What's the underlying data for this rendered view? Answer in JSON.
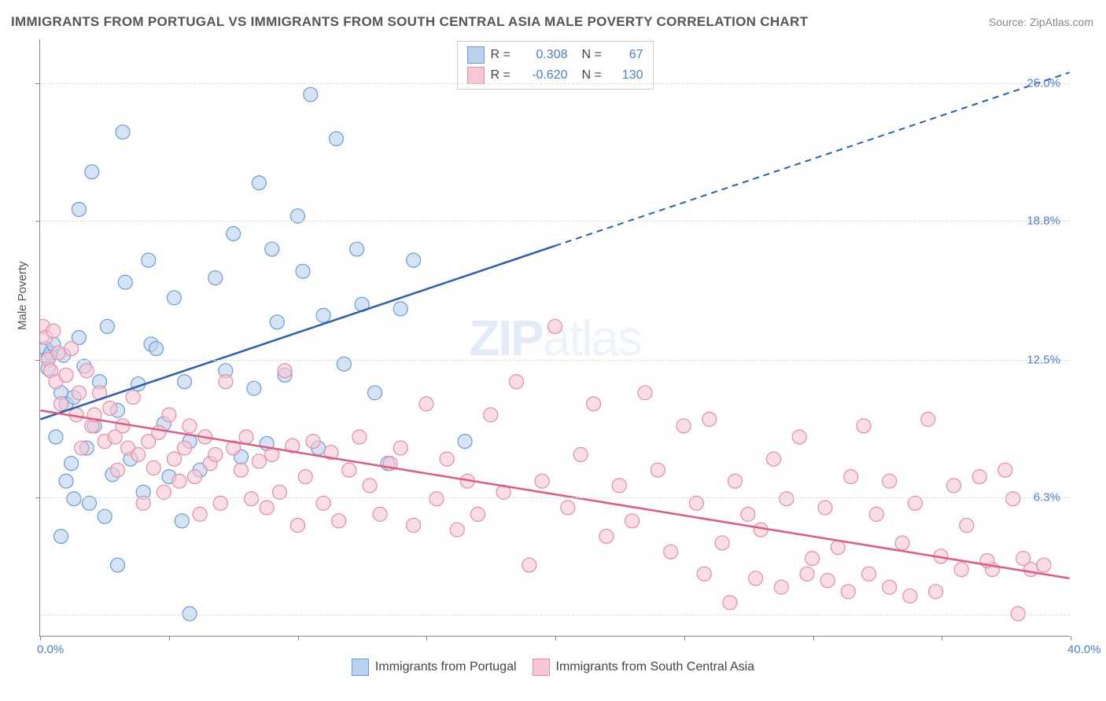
{
  "title": "IMMIGRANTS FROM PORTUGAL VS IMMIGRANTS FROM SOUTH CENTRAL ASIA MALE POVERTY CORRELATION CHART",
  "source": "Source: ZipAtlas.com",
  "ylabel": "Male Poverty",
  "watermark_main": "ZIP",
  "watermark_sub": "atlas",
  "background_color": "#ffffff",
  "grid_color": "#dddddd",
  "axis_color": "#888888",
  "text_color": "#555555",
  "value_color": "#4a7fd8",
  "xlim": [
    0,
    40
  ],
  "ylim": [
    0,
    27
  ],
  "xticks": [
    {
      "pos": 0.0,
      "label": "0.0%"
    },
    {
      "pos": 40.0,
      "label": "40.0%"
    }
  ],
  "xtick_marks": [
    0,
    5,
    10,
    15,
    20,
    25,
    30,
    35,
    40
  ],
  "yticks": [
    {
      "pos": 6.3,
      "label": "6.3%"
    },
    {
      "pos": 12.5,
      "label": "12.5%"
    },
    {
      "pos": 18.8,
      "label": "18.8%"
    },
    {
      "pos": 25.0,
      "label": "25.0%"
    }
  ],
  "ygrid": [
    1.0,
    6.3,
    12.5,
    18.8,
    25.0
  ],
  "series": [
    {
      "name": "Immigrants from Portugal",
      "fill": "#b9d1ef",
      "stroke": "#6b9bd8",
      "line_color": "#2b5fb0",
      "R": "0.308",
      "N": "67",
      "trend": {
        "x1": 0,
        "y1": 9.8,
        "x2": 40,
        "y2": 25.5,
        "solid_until_x": 20
      },
      "points": [
        [
          0.2,
          13.0
        ],
        [
          0.3,
          12.6
        ],
        [
          0.3,
          12.1
        ],
        [
          0.4,
          12.8
        ],
        [
          0.5,
          13.2
        ],
        [
          0.6,
          9.0
        ],
        [
          0.8,
          11.0
        ],
        [
          0.8,
          4.5
        ],
        [
          0.9,
          12.7
        ],
        [
          1.0,
          10.5
        ],
        [
          1.0,
          7.0
        ],
        [
          1.2,
          7.8
        ],
        [
          1.3,
          6.2
        ],
        [
          1.3,
          10.8
        ],
        [
          1.5,
          13.5
        ],
        [
          1.5,
          19.3
        ],
        [
          1.7,
          12.2
        ],
        [
          1.8,
          8.5
        ],
        [
          1.9,
          6.0
        ],
        [
          2.0,
          21.0
        ],
        [
          2.1,
          9.5
        ],
        [
          2.3,
          11.5
        ],
        [
          2.5,
          5.4
        ],
        [
          2.6,
          14.0
        ],
        [
          2.8,
          7.3
        ],
        [
          3.0,
          10.2
        ],
        [
          3.0,
          3.2
        ],
        [
          3.2,
          22.8
        ],
        [
          3.3,
          16.0
        ],
        [
          3.5,
          8.0
        ],
        [
          3.8,
          11.4
        ],
        [
          4.0,
          6.5
        ],
        [
          4.2,
          17.0
        ],
        [
          4.3,
          13.2
        ],
        [
          4.5,
          13.0
        ],
        [
          4.8,
          9.6
        ],
        [
          5.0,
          7.2
        ],
        [
          5.2,
          15.3
        ],
        [
          5.5,
          5.2
        ],
        [
          5.6,
          11.5
        ],
        [
          5.8,
          1.0
        ],
        [
          5.8,
          8.8
        ],
        [
          6.2,
          7.5
        ],
        [
          6.8,
          16.2
        ],
        [
          7.2,
          12.0
        ],
        [
          7.5,
          18.2
        ],
        [
          7.8,
          8.1
        ],
        [
          8.3,
          11.2
        ],
        [
          8.5,
          20.5
        ],
        [
          8.8,
          8.7
        ],
        [
          9.0,
          17.5
        ],
        [
          9.2,
          14.2
        ],
        [
          9.5,
          11.8
        ],
        [
          10.0,
          19.0
        ],
        [
          10.2,
          16.5
        ],
        [
          10.5,
          24.5
        ],
        [
          10.8,
          8.5
        ],
        [
          11.0,
          14.5
        ],
        [
          11.5,
          22.5
        ],
        [
          11.8,
          12.3
        ],
        [
          12.3,
          17.5
        ],
        [
          12.5,
          15.0
        ],
        [
          13.0,
          11.0
        ],
        [
          13.5,
          7.8
        ],
        [
          14.0,
          14.8
        ],
        [
          14.5,
          17.0
        ],
        [
          16.5,
          8.8
        ]
      ]
    },
    {
      "name": "Immigrants from South Central Asia",
      "fill": "#f7c8d4",
      "stroke": "#e88ba3",
      "line_color": "#e15a7f",
      "R": "-0.620",
      "N": "130",
      "trend": {
        "x1": 0,
        "y1": 10.2,
        "x2": 40,
        "y2": 2.6,
        "solid_until_x": 40
      },
      "points": [
        [
          0.1,
          14.0
        ],
        [
          0.2,
          13.5
        ],
        [
          0.3,
          12.5
        ],
        [
          0.4,
          12.0
        ],
        [
          0.5,
          13.8
        ],
        [
          0.6,
          11.5
        ],
        [
          0.7,
          12.8
        ],
        [
          0.8,
          10.5
        ],
        [
          1.0,
          11.8
        ],
        [
          1.2,
          13.0
        ],
        [
          1.4,
          10.0
        ],
        [
          1.5,
          11.0
        ],
        [
          1.6,
          8.5
        ],
        [
          1.8,
          12.0
        ],
        [
          2.0,
          9.5
        ],
        [
          2.1,
          10.0
        ],
        [
          2.3,
          11.0
        ],
        [
          2.5,
          8.8
        ],
        [
          2.7,
          10.3
        ],
        [
          2.9,
          9.0
        ],
        [
          3.0,
          7.5
        ],
        [
          3.2,
          9.5
        ],
        [
          3.4,
          8.5
        ],
        [
          3.6,
          10.8
        ],
        [
          3.8,
          8.2
        ],
        [
          4.0,
          6.0
        ],
        [
          4.2,
          8.8
        ],
        [
          4.4,
          7.6
        ],
        [
          4.6,
          9.2
        ],
        [
          4.8,
          6.5
        ],
        [
          5.0,
          10.0
        ],
        [
          5.2,
          8.0
        ],
        [
          5.4,
          7.0
        ],
        [
          5.6,
          8.5
        ],
        [
          5.8,
          9.5
        ],
        [
          6.0,
          7.2
        ],
        [
          6.2,
          5.5
        ],
        [
          6.4,
          9.0
        ],
        [
          6.6,
          7.8
        ],
        [
          6.8,
          8.2
        ],
        [
          7.0,
          6.0
        ],
        [
          7.2,
          11.5
        ],
        [
          7.5,
          8.5
        ],
        [
          7.8,
          7.5
        ],
        [
          8.0,
          9.0
        ],
        [
          8.2,
          6.2
        ],
        [
          8.5,
          7.9
        ],
        [
          8.8,
          5.8
        ],
        [
          9.0,
          8.2
        ],
        [
          9.3,
          6.5
        ],
        [
          9.5,
          12.0
        ],
        [
          9.8,
          8.6
        ],
        [
          10.0,
          5.0
        ],
        [
          10.3,
          7.2
        ],
        [
          10.6,
          8.8
        ],
        [
          11.0,
          6.0
        ],
        [
          11.3,
          8.3
        ],
        [
          11.6,
          5.2
        ],
        [
          12.0,
          7.5
        ],
        [
          12.4,
          9.0
        ],
        [
          12.8,
          6.8
        ],
        [
          13.2,
          5.5
        ],
        [
          13.6,
          7.8
        ],
        [
          14.0,
          8.5
        ],
        [
          14.5,
          5.0
        ],
        [
          15.0,
          10.5
        ],
        [
          15.4,
          6.2
        ],
        [
          15.8,
          8.0
        ],
        [
          16.2,
          4.8
        ],
        [
          16.6,
          7.0
        ],
        [
          17.0,
          5.5
        ],
        [
          17.5,
          10.0
        ],
        [
          18.0,
          6.5
        ],
        [
          18.5,
          11.5
        ],
        [
          19.0,
          3.2
        ],
        [
          19.5,
          7.0
        ],
        [
          20.0,
          14.0
        ],
        [
          20.5,
          5.8
        ],
        [
          21.0,
          8.2
        ],
        [
          21.5,
          10.5
        ],
        [
          22.0,
          4.5
        ],
        [
          22.5,
          6.8
        ],
        [
          23.0,
          5.2
        ],
        [
          23.5,
          11.0
        ],
        [
          24.0,
          7.5
        ],
        [
          24.5,
          3.8
        ],
        [
          25.0,
          9.5
        ],
        [
          25.5,
          6.0
        ],
        [
          26.0,
          9.8
        ],
        [
          26.5,
          4.2
        ],
        [
          27.0,
          7.0
        ],
        [
          27.5,
          5.5
        ],
        [
          28.0,
          4.8
        ],
        [
          28.5,
          8.0
        ],
        [
          29.0,
          6.2
        ],
        [
          29.5,
          9.0
        ],
        [
          30.0,
          3.5
        ],
        [
          30.5,
          5.8
        ],
        [
          31.0,
          4.0
        ],
        [
          31.5,
          7.2
        ],
        [
          32.0,
          9.5
        ],
        [
          32.5,
          5.5
        ],
        [
          33.0,
          7.0
        ],
        [
          33.5,
          4.2
        ],
        [
          34.0,
          6.0
        ],
        [
          34.5,
          9.8
        ],
        [
          35.0,
          3.6
        ],
        [
          35.5,
          6.8
        ],
        [
          36.0,
          5.0
        ],
        [
          36.5,
          7.2
        ],
        [
          37.0,
          3.0
        ],
        [
          37.5,
          7.5
        ],
        [
          38.0,
          1.0
        ],
        [
          38.2,
          3.5
        ],
        [
          38.5,
          3.0
        ],
        [
          39.0,
          3.2
        ],
        [
          37.8,
          6.2
        ],
        [
          36.8,
          3.4
        ],
        [
          35.8,
          3.0
        ],
        [
          34.8,
          2.0
        ],
        [
          33.8,
          1.8
        ],
        [
          33.0,
          2.2
        ],
        [
          32.2,
          2.8
        ],
        [
          31.4,
          2.0
        ],
        [
          30.6,
          2.5
        ],
        [
          29.8,
          2.8
        ],
        [
          28.8,
          2.2
        ],
        [
          27.8,
          2.6
        ],
        [
          26.8,
          1.5
        ],
        [
          25.8,
          2.8
        ]
      ]
    }
  ]
}
